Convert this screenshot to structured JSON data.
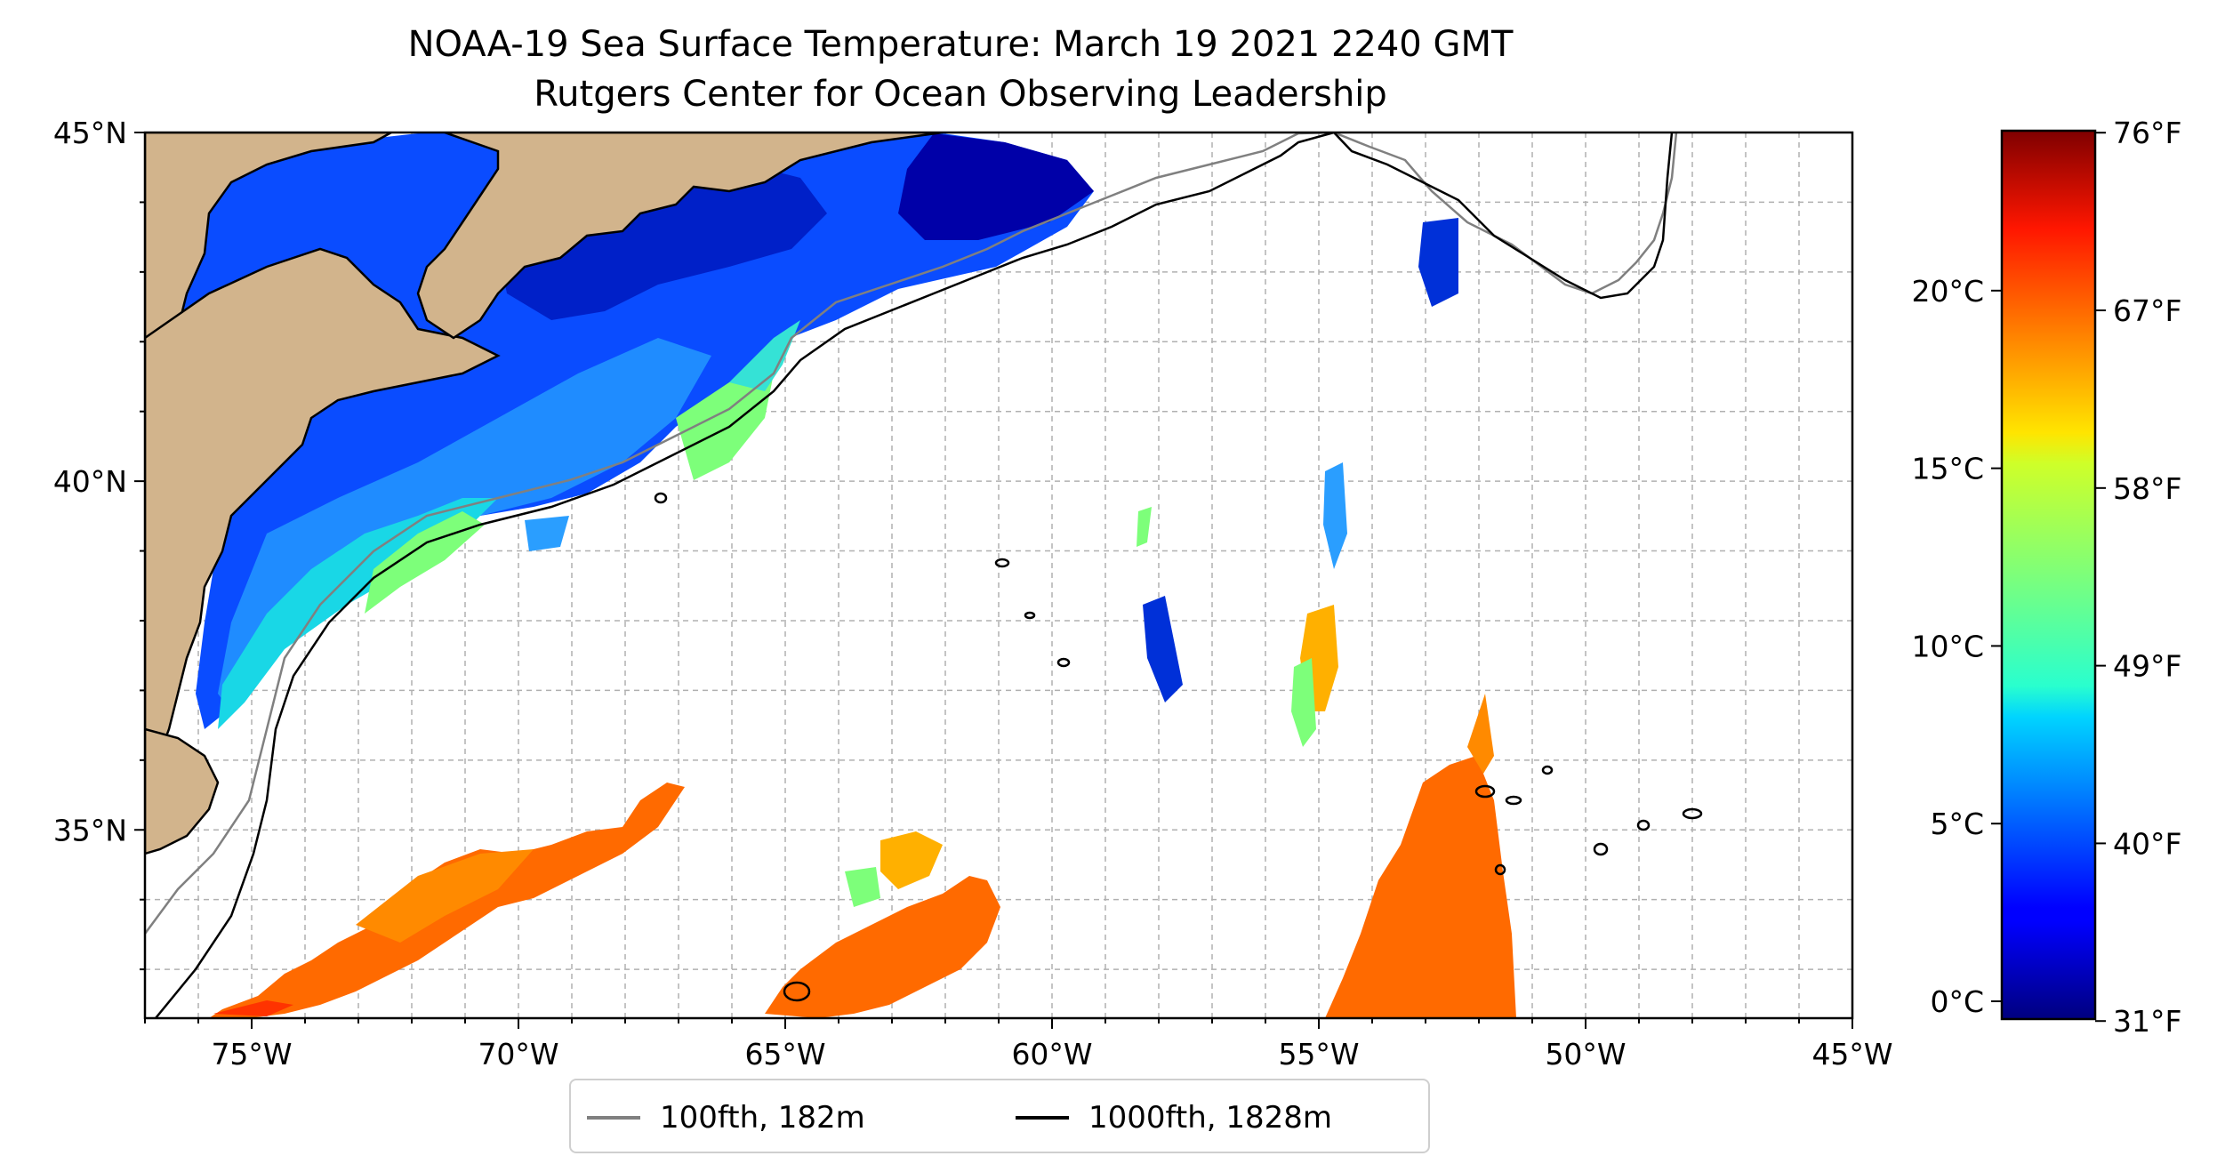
{
  "title": {
    "line1": "NOAA-19 Sea Surface Temperature: March 19 2021 2240 GMT",
    "line2": "Rutgers Center for Ocean Observing Leadership"
  },
  "map": {
    "extent": {
      "lon_min": -77,
      "lon_max": -45,
      "lat_min": 32.3,
      "lat_max": 45
    },
    "lat_ticks": [
      {
        "value": 45,
        "label": "45°N"
      },
      {
        "value": 40,
        "label": "40°N"
      },
      {
        "value": 35,
        "label": "35°N"
      }
    ],
    "lon_ticks": [
      {
        "value": -75,
        "label": "75°W"
      },
      {
        "value": -70,
        "label": "70°W"
      },
      {
        "value": -65,
        "label": "65°W"
      },
      {
        "value": -60,
        "label": "60°W"
      },
      {
        "value": -55,
        "label": "55°W"
      },
      {
        "value": -50,
        "label": "50°W"
      },
      {
        "value": -45,
        "label": "45°W"
      }
    ],
    "gridlines": true,
    "gridline_spacing_deg": 1,
    "colors": {
      "land": "#d2b48c",
      "ocean_no_data": "#ffffff",
      "isobath_100fth": "#808080",
      "isobath_1000fth": "#000000",
      "lakes": "#a6c3e8"
    }
  },
  "colorbar": {
    "colormap": "jet",
    "range_celsius": [
      -0.5,
      24.5
    ],
    "celsius_ticks": [
      {
        "value": 0,
        "label": "0°C"
      },
      {
        "value": 5,
        "label": "5°C"
      },
      {
        "value": 10,
        "label": "10°C"
      },
      {
        "value": 15,
        "label": "15°C"
      },
      {
        "value": 20,
        "label": "20°C"
      }
    ],
    "fahrenheit_ticks": [
      {
        "value": 31,
        "label": "31°F"
      },
      {
        "value": 40,
        "label": "40°F"
      },
      {
        "value": 49,
        "label": "49°F"
      },
      {
        "value": 58,
        "label": "58°F"
      },
      {
        "value": 67,
        "label": "67°F"
      },
      {
        "value": 76,
        "label": "76°F"
      }
    ]
  },
  "legend": {
    "placement": "bottom-center",
    "items": [
      {
        "label": "100fth, 182m",
        "color": "#808080"
      },
      {
        "label": "1000fth, 1828m",
        "color": "#000000"
      }
    ]
  }
}
